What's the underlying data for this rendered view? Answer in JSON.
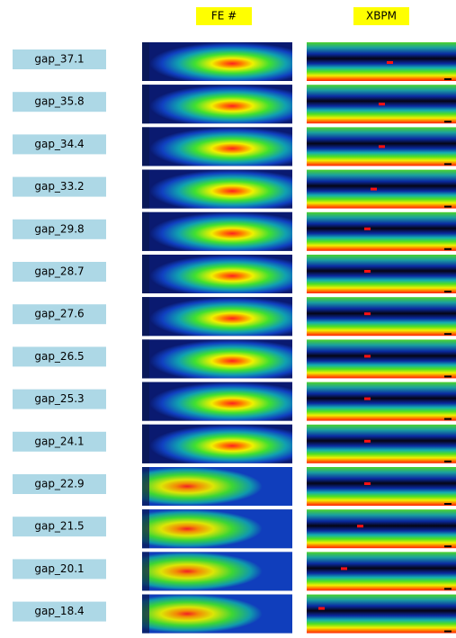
{
  "header": {
    "fe_label": "FE #",
    "xbpm_label": "XBPM"
  },
  "rows": [
    {
      "label": "gap_37.1"
    },
    {
      "label": "gap_35.8"
    },
    {
      "label": "gap_34.4"
    },
    {
      "label": "gap_33.2"
    },
    {
      "label": "gap_29.8"
    },
    {
      "label": "gap_28.7"
    },
    {
      "label": "gap_27.6"
    },
    {
      "label": "gap_26.5"
    },
    {
      "label": "gap_25.3"
    },
    {
      "label": "gap_24.1"
    },
    {
      "label": "gap_22.9"
    },
    {
      "label": "gap_21.5"
    },
    {
      "label": "gap_20.1"
    },
    {
      "label": "gap_18.4"
    }
  ]
}
